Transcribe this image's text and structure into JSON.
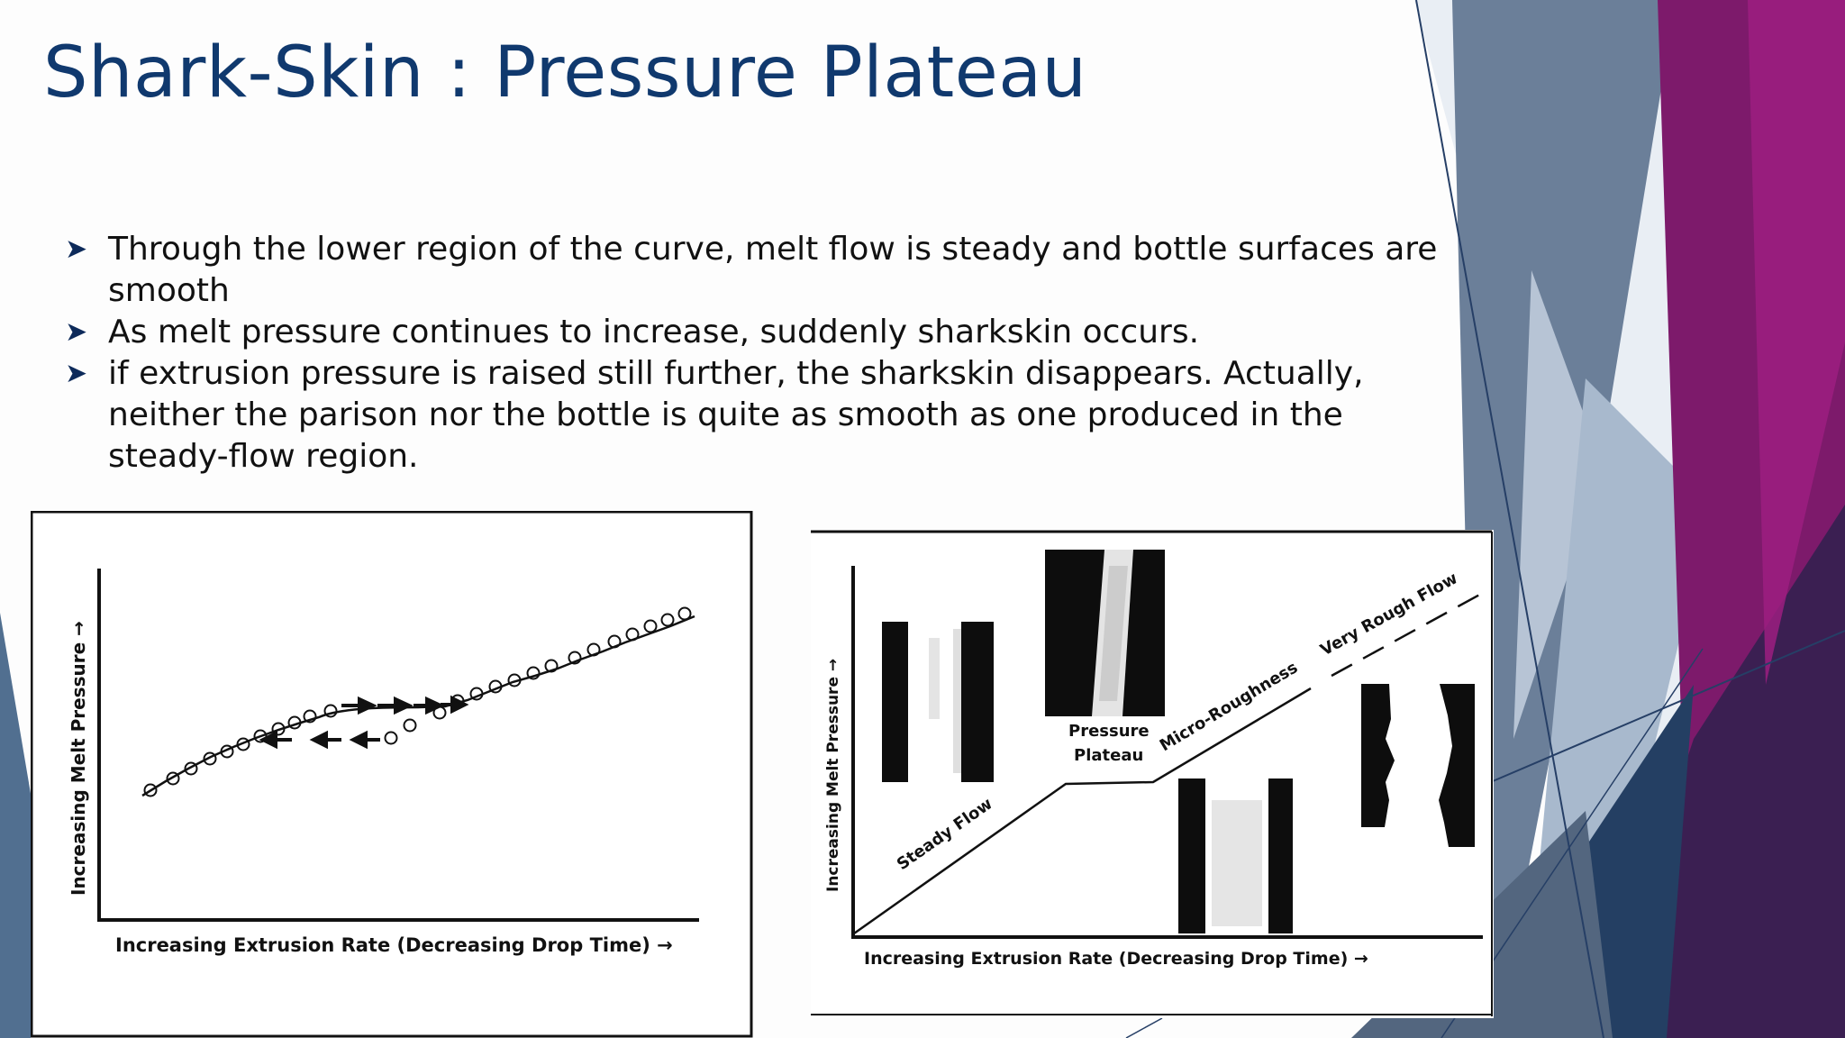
{
  "slide": {
    "title": "Shark-Skin : Pressure Plateau",
    "bullet_icon": "arrow-bullet-icon",
    "bullets": [
      "Through the lower region of the curve, melt flow is steady and bottle surfaces are smooth",
      "As melt pressure continues to increase, suddenly sharkskin occurs.",
      "if extrusion pressure is raised still further, the sharkskin disappears. Actually, neither the parison nor the bottle is quite as smooth as one produced in the steady-flow region."
    ]
  },
  "colors": {
    "title": "#10396e",
    "slate_blue": "#3e5f84",
    "magenta": "#8b1a74",
    "dark_purple": "#3b1f52"
  },
  "figure_left": {
    "ylabel": "Increasing Melt Pressure →",
    "xlabel": "Increasing Extrusion Rate (Decreasing Drop Time) →"
  },
  "figure_right": {
    "ylabel": "Increasing Melt Pressure →",
    "xlabel": "Increasing Extrusion Rate (Decreasing Drop Time) →",
    "labels": {
      "steady_flow": "Steady Flow",
      "pressure": "Pressure",
      "plateau": "Plateau",
      "micro_roughness": "Micro-Roughness",
      "very_rough_flow": "Very Rough Flow"
    }
  }
}
